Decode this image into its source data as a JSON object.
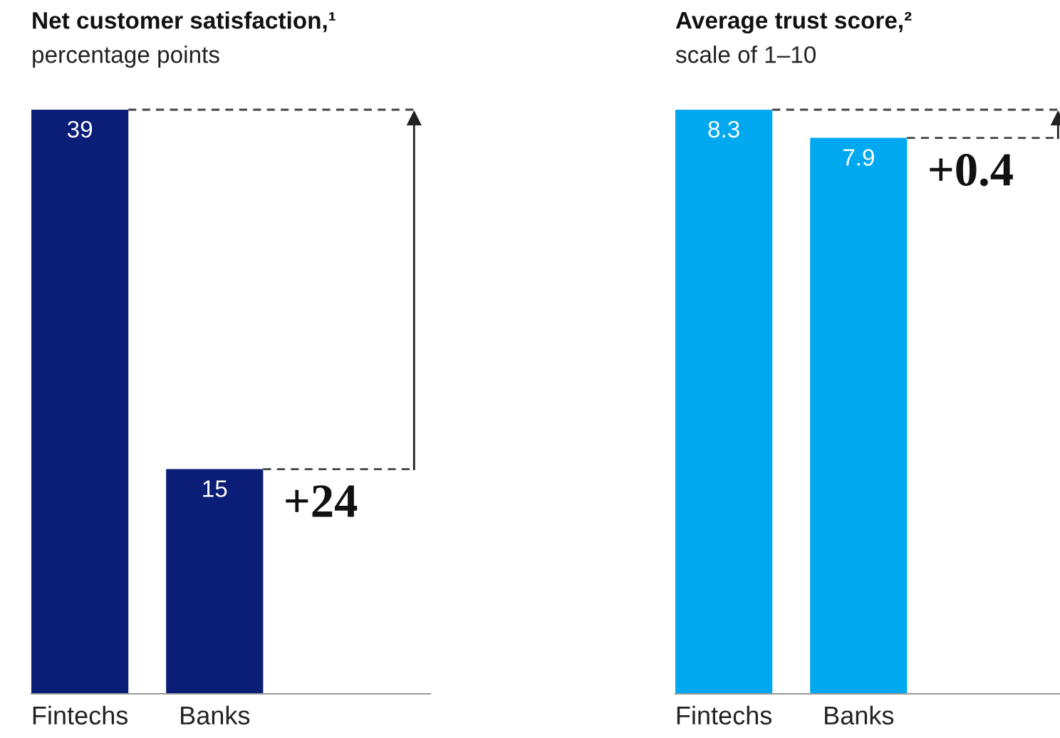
{
  "chart_data": [
    {
      "type": "bar",
      "title": "Net customer satisfaction,¹",
      "subtitle": "percentage points",
      "categories": [
        "Fintechs",
        "Banks"
      ],
      "values": [
        39,
        15
      ],
      "color": "#0b1e77",
      "data_labels": true,
      "annotations": [
        "+24"
      ]
    },
    {
      "type": "bar",
      "title": "Average trust score,²",
      "subtitle": "scale of 1–10",
      "categories": [
        "Fintechs",
        "Banks"
      ],
      "values": [
        8.3,
        7.9
      ],
      "color": "#00a8f0",
      "data_labels": true,
      "annotations": [
        "+0.4"
      ]
    }
  ]
}
